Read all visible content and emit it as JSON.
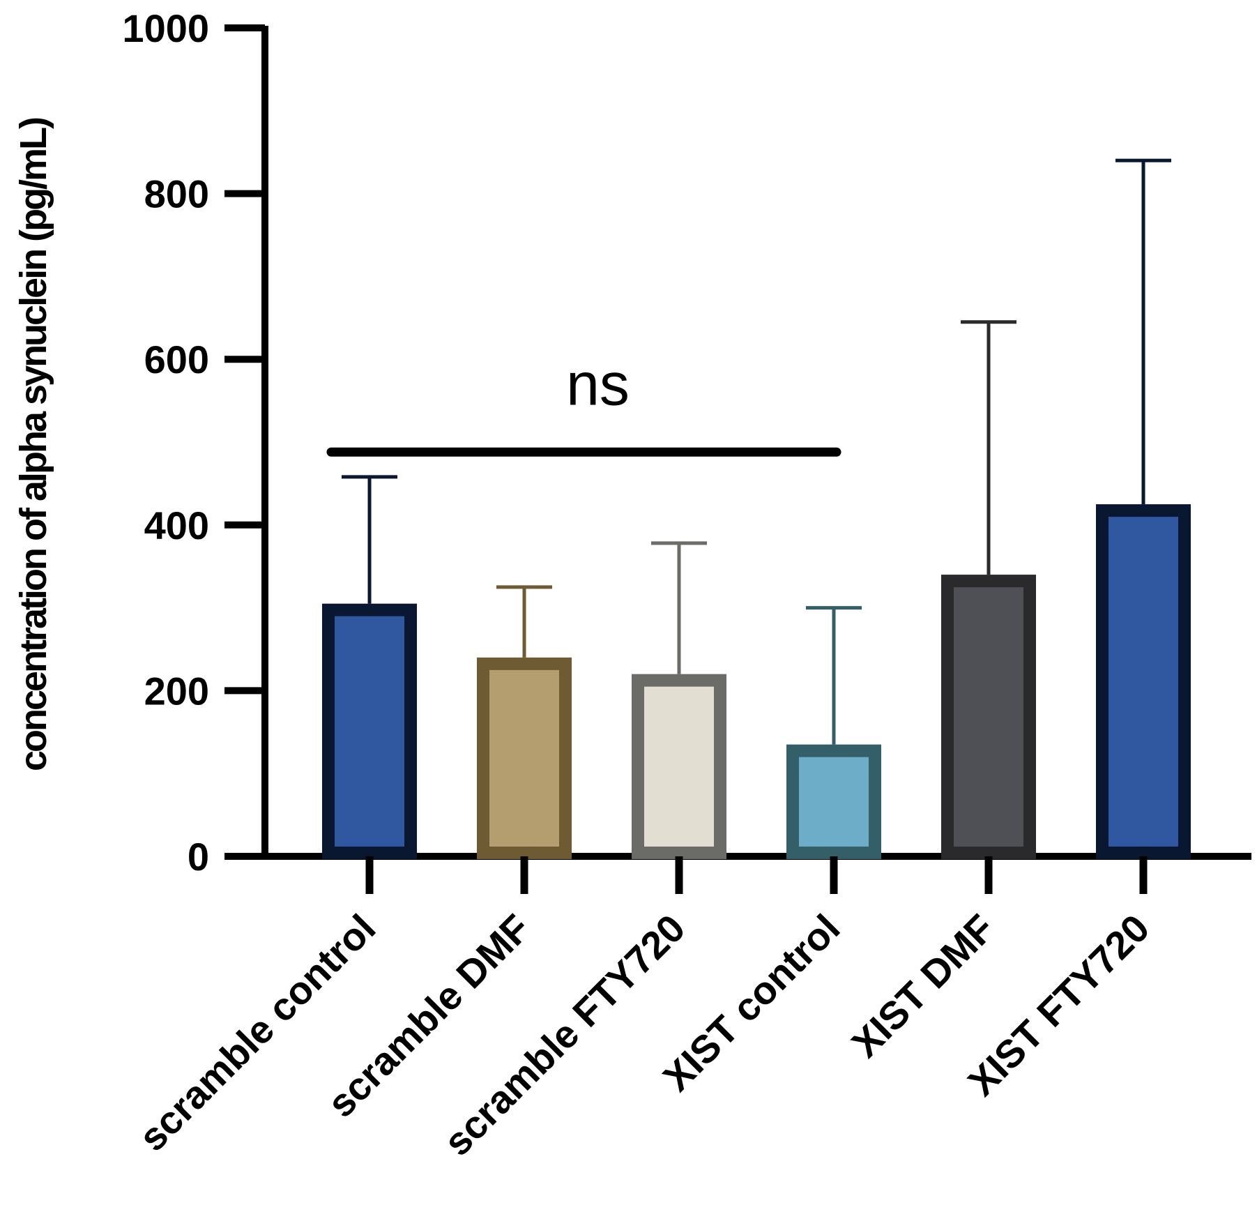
{
  "chart_data": {
    "type": "bar",
    "title": "",
    "xlabel": "",
    "ylabel": "concentration of alpha synuclein (pg/mL)",
    "ylim": [
      0,
      1000
    ],
    "yticks": [
      "0",
      "200",
      "400",
      "600",
      "800",
      "1000"
    ],
    "categories": [
      "scramble control",
      "scramble DMF",
      "scramble FTY720",
      "XIST control",
      "XIST DMF",
      "XIST FTY720"
    ],
    "values": [
      305,
      240,
      220,
      135,
      340,
      425
    ],
    "error_upper": [
      458,
      325,
      378,
      300,
      645,
      840
    ],
    "colors": {
      "fill": [
        "#2f58a1",
        "#b49e70",
        "#e2ded2",
        "#6eadc7",
        "#4e5055",
        "#2f58a1"
      ],
      "edge": [
        "#0a1730",
        "#6e5a33",
        "#6b6b67",
        "#345f69",
        "#2a2a2c",
        "#0a1730"
      ]
    },
    "annotation": {
      "text": "ns",
      "from_category": 0,
      "to_category": 3,
      "y_value": 488
    }
  }
}
